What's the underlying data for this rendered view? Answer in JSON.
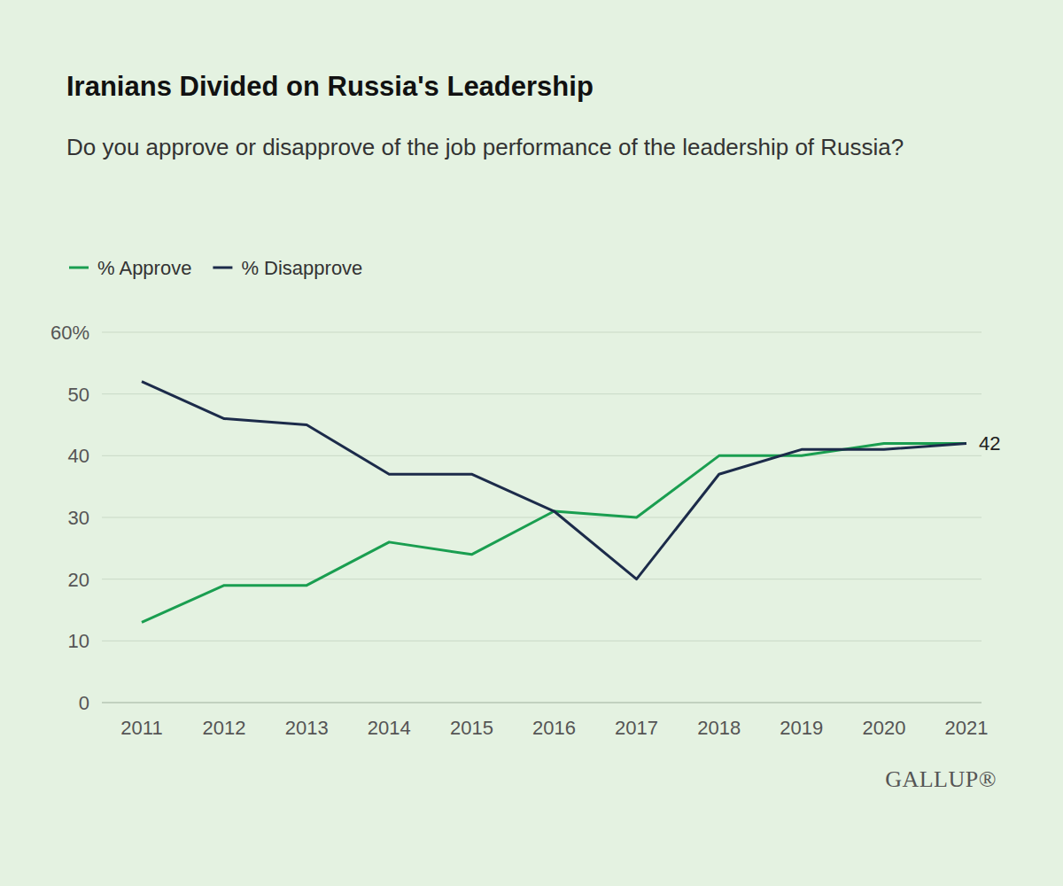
{
  "chart_data": {
    "type": "line",
    "title": "Iranians Divided on Russia's Leadership",
    "subtitle": "Do you approve or disapprove of the job performance of the leadership of Russia?",
    "categories": [
      "2011",
      "2012",
      "2013",
      "2014",
      "2015",
      "2016",
      "2017",
      "2018",
      "2019",
      "2020",
      "2021"
    ],
    "series": [
      {
        "name": "% Approve",
        "color": "#1a9e50",
        "values": [
          13,
          19,
          19,
          26,
          24,
          31,
          30,
          40,
          40,
          42,
          42
        ]
      },
      {
        "name": "% Disapprove",
        "color": "#1c2b4a",
        "values": [
          52,
          46,
          45,
          37,
          37,
          31,
          20,
          37,
          41,
          41,
          42
        ]
      }
    ],
    "ylim": [
      0,
      60
    ],
    "yticks": [
      0,
      10,
      20,
      30,
      40,
      50,
      {
        "value": 60,
        "label": "60%"
      }
    ],
    "grid": true,
    "legend": "top-left",
    "annotations": [
      {
        "text": "42",
        "x": "2021",
        "y": 42
      }
    ],
    "source": "GALLUP®"
  }
}
